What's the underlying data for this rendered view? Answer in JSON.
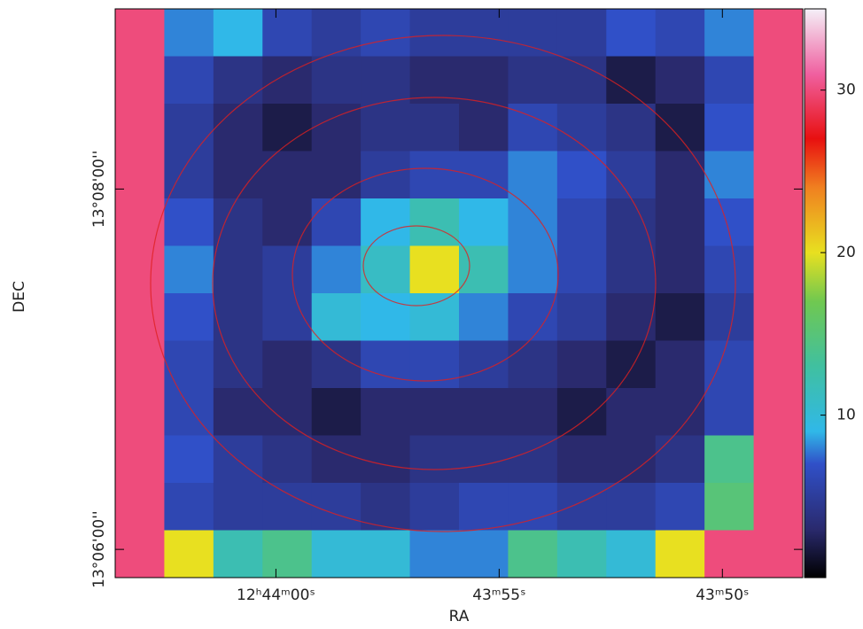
{
  "chart_data": {
    "type": "image",
    "x_label": "RA",
    "y_label": "DEC",
    "xlim": [
      45843.6,
      45828.2
    ],
    "xticks": [
      {
        "value": 45840,
        "label": "12ʰ44ᵐ00ˢ"
      },
      {
        "value": 45835,
        "label": "43ᵐ55ˢ"
      },
      {
        "value": 45830,
        "label": "43ᵐ50ˢ"
      }
    ],
    "ylim": [
      47150.6,
      47340
    ],
    "yticks": [
      {
        "value": 47160,
        "label": "13°06'00''"
      },
      {
        "value": 47280,
        "label": "13°08'00''"
      }
    ],
    "z": [
      [
        30,
        8,
        9,
        6,
        5,
        6,
        5,
        5,
        5,
        5,
        7,
        6,
        8,
        30
      ],
      [
        30,
        6,
        4,
        3,
        4,
        4,
        3,
        3,
        4,
        4,
        2,
        3,
        6,
        30
      ],
      [
        30,
        5,
        3,
        2,
        3,
        4,
        4,
        3,
        6,
        5,
        4,
        2,
        7,
        30
      ],
      [
        30,
        5,
        3,
        3,
        3,
        5,
        6,
        6,
        8,
        7,
        5,
        3,
        8,
        30
      ],
      [
        30,
        7,
        4,
        3,
        6,
        9,
        12,
        9,
        8,
        6,
        4,
        3,
        7,
        30
      ],
      [
        30,
        8,
        4,
        5,
        8,
        11,
        20,
        12,
        8,
        6,
        4,
        3,
        6,
        30
      ],
      [
        30,
        7,
        4,
        5,
        10,
        9,
        10,
        8,
        6,
        5,
        3,
        2,
        5,
        30
      ],
      [
        30,
        6,
        4,
        3,
        4,
        6,
        6,
        5,
        4,
        3,
        2,
        3,
        6,
        30
      ],
      [
        30,
        6,
        3,
        3,
        2,
        3,
        3,
        3,
        3,
        2,
        3,
        3,
        6,
        30
      ],
      [
        30,
        7,
        5,
        4,
        3,
        3,
        4,
        4,
        4,
        3,
        3,
        4,
        14,
        30
      ],
      [
        30,
        6,
        5,
        5,
        5,
        4,
        5,
        6,
        6,
        5,
        5,
        6,
        15,
        30
      ],
      [
        30,
        20,
        12,
        14,
        10,
        10,
        8,
        8,
        14,
        12,
        10,
        20,
        30,
        30
      ]
    ],
    "colormap": {
      "values": [
        0,
        3,
        7,
        9,
        13,
        17,
        20,
        24,
        27,
        31,
        35
      ],
      "colors": [
        "#000000",
        "#2a2a6e",
        "#3050c8",
        "#30b8e8",
        "#40c0a0",
        "#70c850",
        "#e8e020",
        "#f08020",
        "#e81010",
        "#f060a0",
        "#f4f0f8"
      ]
    },
    "colorbar": {
      "lim": [
        0,
        35
      ],
      "ticks": [
        10,
        20,
        30
      ]
    }
  }
}
